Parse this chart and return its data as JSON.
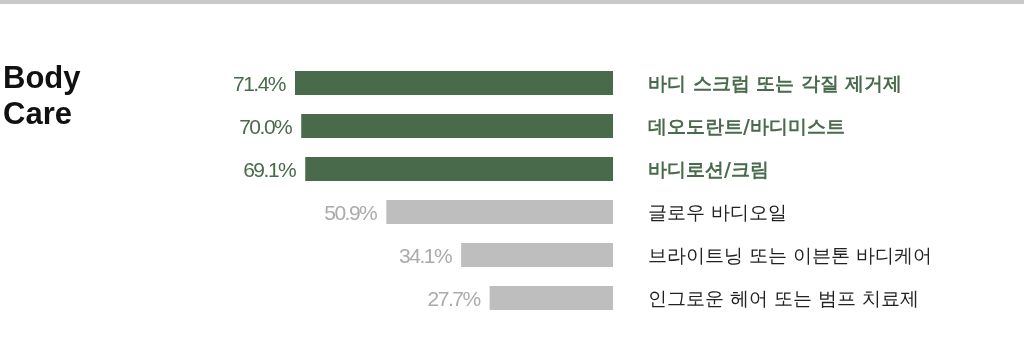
{
  "chart_data": {
    "type": "bar",
    "orientation": "horizontal",
    "title": "Body Care",
    "categories": [
      "바디 스크럽 또는 각질 제거제",
      "데오도란트/바디미스트",
      "바디로션/크림",
      "글로우 바디오일",
      "브라이트닝 또는 이븐톤 바디케어",
      "인그로운 헤어 또는 범프 치료제"
    ],
    "values": [
      71.4,
      70.0,
      69.1,
      50.9,
      34.1,
      27.7
    ],
    "value_labels": [
      "71.4%",
      "70.0%",
      "69.1%",
      "50.9%",
      "34.1%",
      "27.7%"
    ],
    "colors": [
      "#4a6b4b",
      "#4a6b4b",
      "#4a6b4b",
      "#bebebe",
      "#bebebe",
      "#bebebe"
    ],
    "relative": false
  }
}
